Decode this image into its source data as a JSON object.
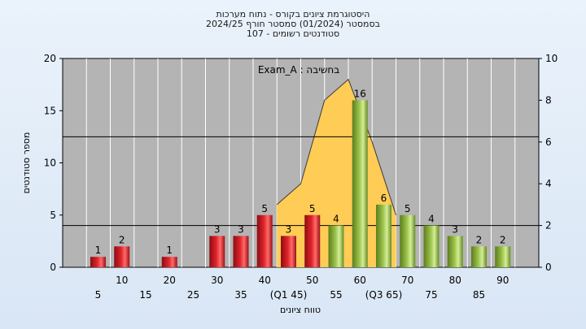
{
  "header": {
    "line1": "היסטוגרמת ציונים בקורס - נתוח מערכות",
    "line2": "בסמסטר  (01/2024)  סמסטר חורף 2024/25",
    "line3": "סטודנטים רשומים - 107"
  },
  "chart_data": {
    "type": "bar",
    "annotation": "Exam_A : בחשיבה",
    "xlabel": "טווח ציונים",
    "ylabel": "מספר סטודנטים",
    "ylim": [
      0,
      20
    ],
    "y2lim": [
      0,
      10
    ],
    "yticks": [
      0,
      5,
      10,
      15,
      20
    ],
    "y2ticks": [
      0,
      2,
      4,
      6,
      8,
      10
    ],
    "xlim": [
      0,
      100
    ],
    "x_upper_ticks": [
      "10",
      "20",
      "30",
      "40",
      "50",
      "60",
      "70",
      "80",
      "90"
    ],
    "x_lower_ticks": [
      "5",
      "15",
      "25",
      "35",
      "(Q1 45)",
      "55",
      "(Q3 65)",
      "75",
      "85"
    ],
    "bars": [
      {
        "x": 10,
        "value": 1,
        "label": "1",
        "color": "red"
      },
      {
        "x": 15,
        "value": 2,
        "label": "2",
        "color": "red"
      },
      {
        "x": 25,
        "value": 1,
        "label": "1",
        "color": "red"
      },
      {
        "x": 35,
        "value": 3,
        "label": "3",
        "color": "red"
      },
      {
        "x": 40,
        "value": 3,
        "label": "3",
        "color": "red"
      },
      {
        "x": 45,
        "value": 5,
        "label": "5",
        "color": "red"
      },
      {
        "x": 50,
        "value": 3,
        "label": "3",
        "color": "red"
      },
      {
        "x": 55,
        "value": 5,
        "label": "5",
        "color": "red"
      },
      {
        "x": 60,
        "value": 4,
        "label": "4",
        "color": "green"
      },
      {
        "x": 65,
        "value": 16,
        "label": "16",
        "color": "green"
      },
      {
        "x": 70,
        "value": 6,
        "label": "6",
        "color": "green"
      },
      {
        "x": 75,
        "value": 5,
        "label": "5",
        "color": "green"
      },
      {
        "x": 80,
        "value": 4,
        "label": "4",
        "color": "green"
      },
      {
        "x": 85,
        "value": 3,
        "label": "3",
        "color": "green"
      },
      {
        "x": 90,
        "value": 2,
        "label": "2",
        "color": "green"
      },
      {
        "x": 95,
        "value": 2,
        "label": "2",
        "color": "green"
      }
    ],
    "area_series": [
      {
        "x": 45,
        "y": 3
      },
      {
        "x": 50,
        "y": 4
      },
      {
        "x": 55,
        "y": 8
      },
      {
        "x": 60,
        "y": 9
      },
      {
        "x": 65,
        "y": 6
      },
      {
        "x": 70,
        "y": 2.5
      }
    ],
    "colors": {
      "plot_bg": "#b4b4b4",
      "red": "#e0242b",
      "green": "#9cc24a",
      "area": "#ffcc55",
      "hline": "#000000"
    },
    "hlines": [
      4,
      12.5
    ]
  }
}
